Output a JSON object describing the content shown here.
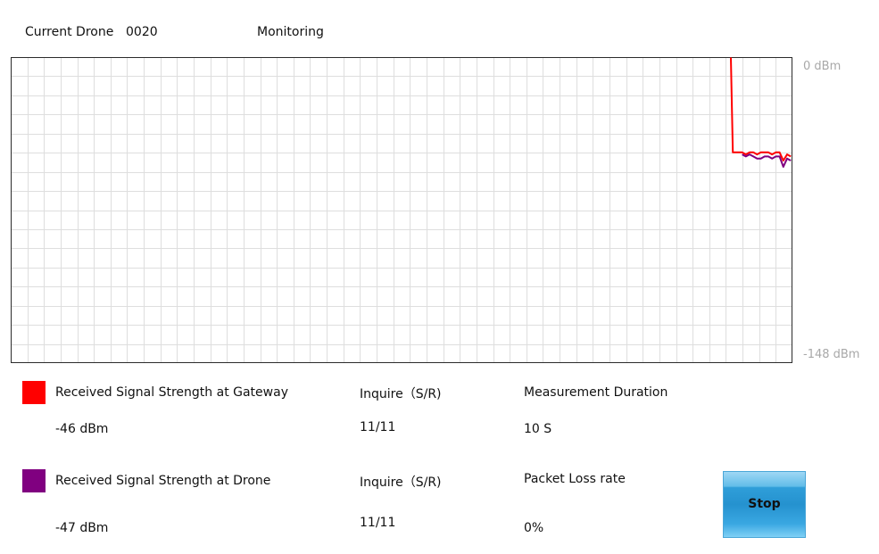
{
  "header": {
    "current_drone_label": "Current Drone",
    "current_drone_id": "0020",
    "status": "Monitoring"
  },
  "chart": {
    "y_max_label": "0 dBm",
    "y_min_label": "-148 dBm"
  },
  "chart_data": {
    "type": "line",
    "ylim": [
      -148,
      0
    ],
    "grid": true,
    "series": [
      {
        "name": "Received Signal Strength at Gateway",
        "color": "#ff0000",
        "x": [
          0,
          1,
          2,
          3,
          4,
          5,
          6,
          7,
          8,
          9,
          10,
          11,
          12,
          13,
          14,
          15,
          16
        ],
        "y": [
          0,
          -46,
          -46,
          -46,
          -47,
          -46,
          -46,
          -47,
          -46,
          -46,
          -46,
          -47,
          -46,
          -46,
          -50,
          -47,
          -48
        ]
      },
      {
        "name": "Received Signal Strength at Drone",
        "color": "#800080",
        "x": [
          3,
          4,
          5,
          6,
          7,
          8,
          9,
          10,
          11,
          12,
          13,
          14,
          15,
          16
        ],
        "y": [
          -47,
          -48,
          -47,
          -48,
          -49,
          -49,
          -48,
          -48,
          -49,
          -48,
          -48,
          -53,
          -49,
          -50
        ]
      }
    ]
  },
  "legend": {
    "gateway": {
      "label": "Received Signal Strength at Gateway",
      "color": "#ff0000",
      "value": "-46 dBm"
    },
    "drone": {
      "label": "Received Signal Strength at Drone",
      "color": "#800080",
      "value": "-47 dBm"
    }
  },
  "stats": {
    "inquire_label_1": "Inquire（S/R)",
    "inquire_value_1": "11/11",
    "inquire_label_2": "Inquire（S/R)",
    "inquire_value_2": "11/11",
    "duration_label": "Measurement Duration",
    "duration_value": "10 S",
    "packet_loss_label": "Packet Loss rate",
    "packet_loss_value": "0%"
  },
  "controls": {
    "stop_label": "Stop"
  }
}
